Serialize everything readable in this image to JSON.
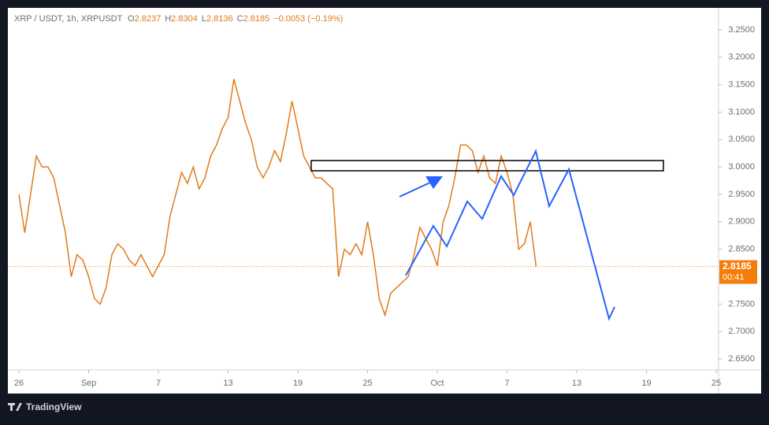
{
  "chart_data": {
    "type": "line",
    "header": {
      "symbol": "XRP / USDT, 1h, XRPUSDT",
      "open_label": "O",
      "open": 2.8237,
      "high_label": "H",
      "high": 2.8304,
      "low_label": "L",
      "low": 2.8136,
      "close_label": "C",
      "close": 2.8185,
      "change": "−0.0053 (−0.19%)"
    },
    "x": [
      0,
      0.5,
      1,
      1.5,
      2,
      2.5,
      3,
      3.5,
      4,
      4.5,
      5,
      5.5,
      6,
      6.5,
      7,
      7.5,
      8,
      8.5,
      9,
      9.5,
      10,
      10.5,
      11,
      11.5,
      12,
      12.5,
      13,
      13.5,
      14,
      14.5,
      15,
      15.5,
      16,
      16.5,
      17,
      17.5,
      18,
      18.5,
      19,
      19.5,
      20,
      20.5,
      21,
      21.5,
      22,
      22.5,
      23,
      23.5,
      24,
      24.5,
      25,
      25.5,
      26,
      26.5,
      27,
      27.5,
      28,
      28.5,
      29,
      29.5,
      30,
      30.5,
      31,
      31.5,
      32,
      32.5,
      33,
      33.5,
      34,
      34.5,
      35,
      35.5,
      36,
      36.5,
      37,
      37.5,
      38,
      38.5,
      39,
      39.5,
      40,
      40.5,
      41,
      41.5,
      42,
      42.5,
      43,
      43.5,
      44,
      44.5
    ],
    "values": [
      2.95,
      2.88,
      2.95,
      3.02,
      3.0,
      3.0,
      2.98,
      2.93,
      2.88,
      2.8,
      2.84,
      2.83,
      2.8,
      2.76,
      2.75,
      2.78,
      2.84,
      2.86,
      2.85,
      2.83,
      2.82,
      2.84,
      2.82,
      2.8,
      2.82,
      2.84,
      2.91,
      2.95,
      2.99,
      2.97,
      3.0,
      2.96,
      2.98,
      3.02,
      3.04,
      3.07,
      3.09,
      3.16,
      3.12,
      3.08,
      3.05,
      3.0,
      2.98,
      3.0,
      3.03,
      3.01,
      3.06,
      3.12,
      3.07,
      3.02,
      3.0,
      2.98,
      2.98,
      2.97,
      2.96,
      2.8,
      2.85,
      2.84,
      2.86,
      2.84,
      2.9,
      2.84,
      2.76,
      2.73,
      2.77,
      2.78,
      2.79,
      2.8,
      2.84,
      2.89,
      2.87,
      2.85,
      2.82,
      2.9,
      2.93,
      2.98,
      3.04,
      3.04,
      3.03,
      2.99,
      3.02,
      2.98,
      2.97,
      3.02,
      2.99,
      2.95,
      2.85,
      2.86,
      2.9,
      2.8185
    ],
    "color": "#e07b1a",
    "last_price": 2.8185,
    "countdown": "00:41",
    "last_price_color": "#f57c0a",
    "ylim": [
      2.63,
      3.29
    ],
    "xlim": [
      -0.95,
      60.2
    ],
    "yticks": [
      {
        "value": 2.65,
        "label": "2.6500"
      },
      {
        "value": 2.7,
        "label": "2.7000"
      },
      {
        "value": 2.75,
        "label": "2.7500"
      },
      {
        "value": 2.8,
        "label": "2.8000"
      },
      {
        "value": 2.85,
        "label": "2.8500"
      },
      {
        "value": 2.9,
        "label": "2.9000"
      },
      {
        "value": 2.95,
        "label": "2.9500"
      },
      {
        "value": 3.0,
        "label": "3.0000"
      },
      {
        "value": 3.05,
        "label": "3.0500"
      },
      {
        "value": 3.1,
        "label": "3.1000"
      },
      {
        "value": 3.15,
        "label": "3.1500"
      },
      {
        "value": 3.2,
        "label": "3.2000"
      },
      {
        "value": 3.25,
        "label": "3.2500"
      }
    ],
    "xticks": [
      {
        "value": 0,
        "label": "26"
      },
      {
        "value": 6,
        "label": "Sep"
      },
      {
        "value": 12,
        "label": "7"
      },
      {
        "value": 18,
        "label": "13"
      },
      {
        "value": 24,
        "label": "19"
      },
      {
        "value": 30,
        "label": "25"
      },
      {
        "value": 36,
        "label": "Oct"
      },
      {
        "value": 42,
        "label": "7"
      },
      {
        "value": 48,
        "label": "13"
      },
      {
        "value": 54,
        "label": "19"
      },
      {
        "value": 60,
        "label": "25"
      }
    ],
    "brand": "TradingView"
  }
}
